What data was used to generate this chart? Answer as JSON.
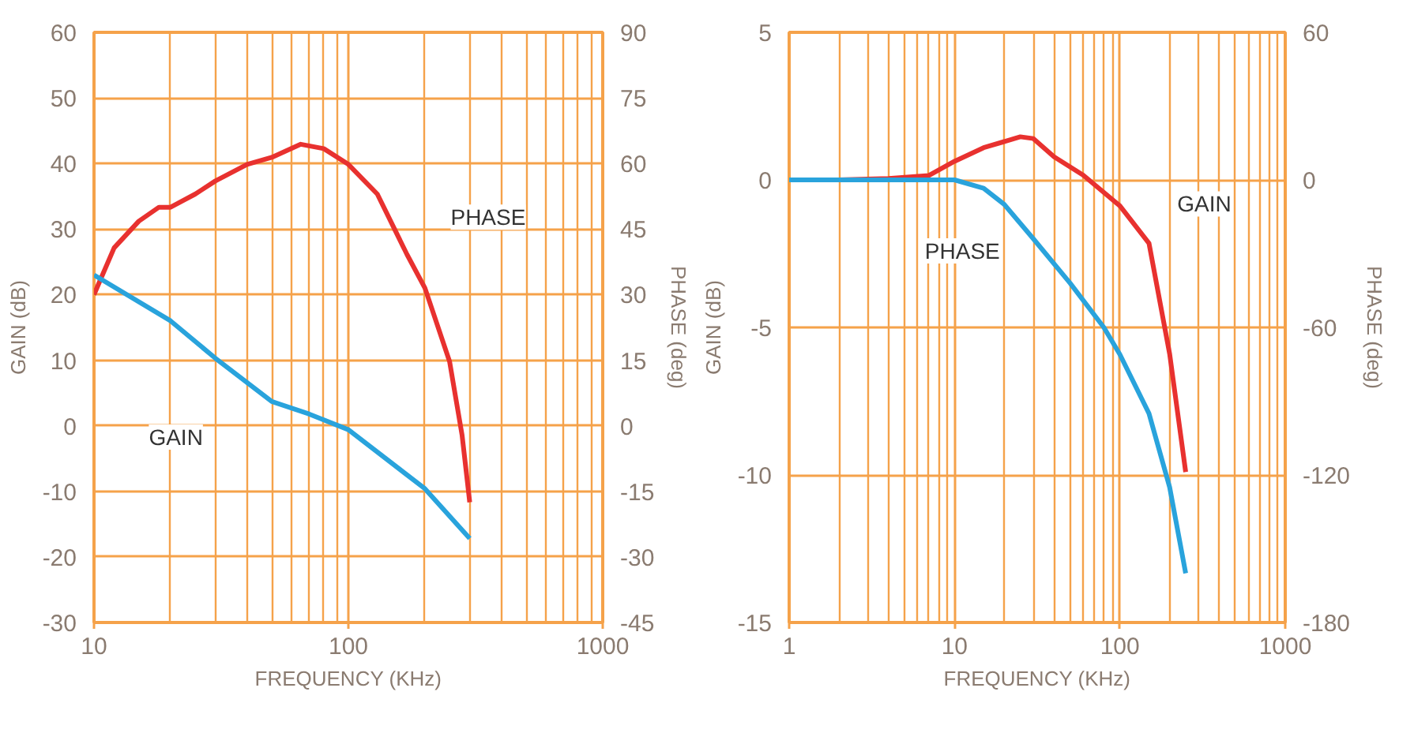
{
  "chart_data": [
    {
      "type": "line",
      "xlabel": "FREQUENCY (KHz)",
      "ylabel": "GAIN (dB)",
      "y2label": "PHASE (deg)",
      "log": "x",
      "grid": true,
      "xlim": [
        10,
        1000
      ],
      "xticks": [
        10,
        {
          "value": 20,
          "label": null
        },
        {
          "value": 30,
          "label": null
        },
        {
          "value": 40,
          "label": null
        },
        {
          "value": 50,
          "label": null
        },
        {
          "value": 60,
          "label": null
        },
        {
          "value": 70,
          "label": null
        },
        {
          "value": 80,
          "label": null
        },
        {
          "value": 90,
          "label": null
        },
        100,
        {
          "value": 200,
          "label": null
        },
        {
          "value": 300,
          "label": null
        },
        {
          "value": 400,
          "label": null
        },
        {
          "value": 500,
          "label": null
        },
        {
          "value": 600,
          "label": null
        },
        {
          "value": 700,
          "label": null
        },
        {
          "value": 800,
          "label": null
        },
        {
          "value": 900,
          "label": null
        },
        1000
      ],
      "ylim": [
        -30,
        60
      ],
      "yticks": [
        -30,
        -20,
        -10,
        0,
        10,
        20,
        30,
        40,
        50,
        60
      ],
      "y2lim": [
        -45,
        90
      ],
      "y2ticks": [
        -45,
        -30,
        -15,
        0,
        15,
        30,
        45,
        60,
        75,
        90
      ],
      "series": [
        {
          "name": "PHASE",
          "color": "#e8312f",
          "axis": "y2",
          "x": [
            10,
            12,
            15,
            18,
            20,
            25,
            30,
            40,
            50,
            65,
            80,
            100,
            130,
            170,
            200,
            250,
            280,
            300
          ],
          "values": [
            30,
            40.7,
            46.8,
            50,
            50,
            53,
            56,
            59.8,
            61.4,
            64.4,
            63.4,
            59.8,
            53,
            39.2,
            31.5,
            14.7,
            -2.2,
            -17.5
          ]
        },
        {
          "name": "GAIN",
          "color": "#29a3dc",
          "x": [
            10,
            20,
            30,
            50,
            70,
            100,
            200,
            300
          ],
          "values": [
            23,
            16,
            10.3,
            3.7,
            1.8,
            -0.6,
            -9.6,
            -17.2
          ]
        }
      ]
    },
    {
      "type": "line",
      "xlabel": "FREQUENCY (KHz)",
      "ylabel": "GAIN (dB)",
      "y2label": "PHASE (deg)",
      "log": "x",
      "grid": true,
      "xlim": [
        1,
        1000
      ],
      "xticks": [
        1,
        {
          "value": 2,
          "label": null
        },
        {
          "value": 3,
          "label": null
        },
        {
          "value": 4,
          "label": null
        },
        {
          "value": 5,
          "label": null
        },
        {
          "value": 6,
          "label": null
        },
        {
          "value": 7,
          "label": null
        },
        {
          "value": 8,
          "label": null
        },
        {
          "value": 9,
          "label": null
        },
        10,
        {
          "value": 20,
          "label": null
        },
        {
          "value": 30,
          "label": null
        },
        {
          "value": 40,
          "label": null
        },
        {
          "value": 50,
          "label": null
        },
        {
          "value": 60,
          "label": null
        },
        {
          "value": 70,
          "label": null
        },
        {
          "value": 80,
          "label": null
        },
        {
          "value": 90,
          "label": null
        },
        100,
        {
          "value": 200,
          "label": null
        },
        {
          "value": 300,
          "label": null
        },
        {
          "value": 400,
          "label": null
        },
        {
          "value": 500,
          "label": null
        },
        {
          "value": 600,
          "label": null
        },
        {
          "value": 700,
          "label": null
        },
        {
          "value": 800,
          "label": null
        },
        {
          "value": 900,
          "label": null
        },
        1000
      ],
      "ylim": [
        -15,
        5
      ],
      "yticks": [
        -15,
        -10,
        -5,
        0,
        5
      ],
      "y2lim": [
        -180,
        60
      ],
      "y2ticks": [
        -180,
        -120,
        -60,
        0,
        60
      ],
      "series": [
        {
          "name": "GAIN",
          "color": "#e8312f",
          "x": [
            1,
            2,
            4,
            7,
            10,
            15,
            25,
            30,
            40,
            60,
            100,
            150,
            200,
            250
          ],
          "values": [
            0,
            0,
            0.05,
            0.15,
            0.63,
            1.09,
            1.46,
            1.4,
            0.78,
            0.16,
            -0.88,
            -2.15,
            -5.9,
            -9.9
          ]
        },
        {
          "name": "PHASE",
          "color": "#29a3dc",
          "axis": "y2",
          "x": [
            1,
            5,
            10,
            15,
            20,
            30,
            50,
            80,
            100,
            150,
            200,
            250
          ],
          "values": [
            0,
            0,
            0,
            -3.4,
            -10,
            -24,
            -42,
            -60,
            -71,
            -95,
            -125,
            -160
          ]
        }
      ]
    }
  ]
}
